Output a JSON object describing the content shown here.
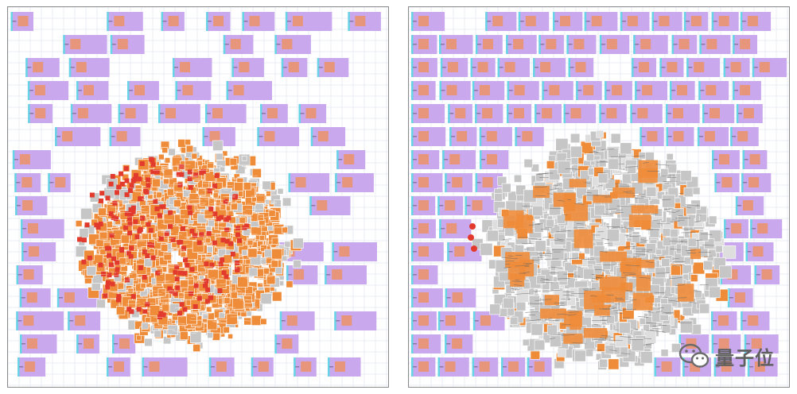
{
  "panels": [
    {
      "id": "left",
      "cluster": "hot",
      "description_free": true
    },
    {
      "id": "right",
      "cluster": "cool",
      "description_free": true
    }
  ],
  "colors": {
    "macro_fill": "#c9a8ee",
    "macro_core": "#e7967b",
    "macro_edge": "#66d5e6",
    "grid_line": "#e9eef6",
    "cell_gray": "#c6c6c6",
    "cell_orange": "#ee8c3a",
    "cell_red": "#e23b2e",
    "wire": "#666666"
  },
  "watermark": {
    "text": "量子位",
    "icon": "wechat-icon"
  }
}
